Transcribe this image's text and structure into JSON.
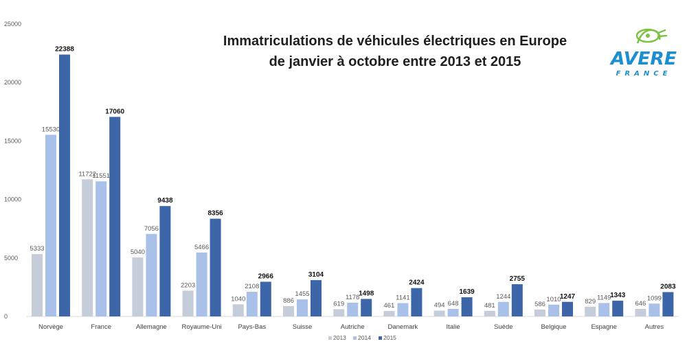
{
  "chart_data": {
    "type": "bar",
    "title_line1": "Immatriculations de véhicules électriques en Europe",
    "title_line2": "de janvier à octobre entre 2013 et 2015",
    "categories": [
      "Norvège",
      "France",
      "Allemagne",
      "Royaume-Uni",
      "Pays-Bas",
      "Suisse",
      "Autriche",
      "Danemark",
      "Italie",
      "Suède",
      "Belgique",
      "Espagne",
      "Autres"
    ],
    "series": [
      {
        "name": "2013",
        "color": "#c4cdd9",
        "values": [
          5333,
          11722,
          5040,
          2203,
          1040,
          886,
          619,
          461,
          494,
          481,
          586,
          829,
          646
        ]
      },
      {
        "name": "2014",
        "color": "#a9c1e8",
        "values": [
          15530,
          11551,
          7056,
          5466,
          2108,
          1455,
          1178,
          1141,
          648,
          1244,
          1010,
          1149,
          1099
        ]
      },
      {
        "name": "2015",
        "color": "#3c66a8",
        "values": [
          22388,
          17060,
          9438,
          8356,
          2966,
          3104,
          1498,
          2424,
          1639,
          2755,
          1247,
          1343,
          2083
        ]
      }
    ],
    "y_ticks": [
      0,
      5000,
      10000,
      15000,
      20000,
      25000
    ],
    "ylim": [
      0,
      25000
    ],
    "xlabel": "",
    "ylabel": "",
    "legend_position": "bottom-center",
    "grid": false
  },
  "logo": {
    "name": "AVERE",
    "subtitle": "FRANCE",
    "green": "#7dc242",
    "blue": "#1d8fd1"
  }
}
